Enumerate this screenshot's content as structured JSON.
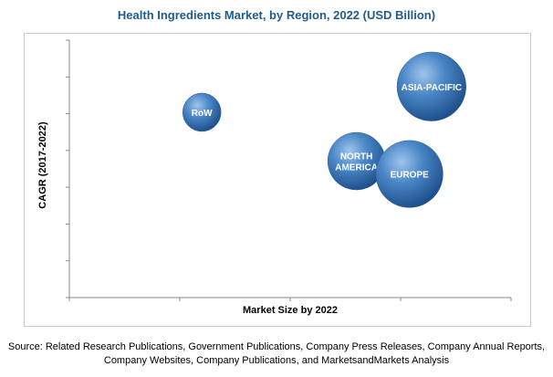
{
  "chart_data": {
    "type": "bubble",
    "title": "Health Ingredients Market, by Region, 2022 (USD Billion)",
    "xlabel": "Market Size by 2022",
    "ylabel": "CAGR (2017-2022)",
    "xlim": [
      0,
      100
    ],
    "ylim": [
      0,
      100
    ],
    "grid": false,
    "series": [
      {
        "label": "RoW",
        "lines": [
          "RoW"
        ],
        "x": 30,
        "y": 72,
        "size": 1.0
      },
      {
        "label": "NORTH AMERICA",
        "lines": [
          "NORTH",
          "AMERICA"
        ],
        "x": 65,
        "y": 53,
        "size": 1.5
      },
      {
        "label": "EUROPE",
        "lines": [
          "EUROPE"
        ],
        "x": 77,
        "y": 48,
        "size": 1.75
      },
      {
        "label": "ASIA-PACIFIC",
        "lines": [
          "ASIA-PACIFIC"
        ],
        "x": 82,
        "y": 82,
        "size": 1.8
      }
    ],
    "bubble_color": "#3f79b8"
  },
  "source_text": "Source: Related Research Publications, Government Publications, Company Press Releases, Company Annual Reports, Company Websites, Company Publications, and MarketsandMarkets Analysis"
}
